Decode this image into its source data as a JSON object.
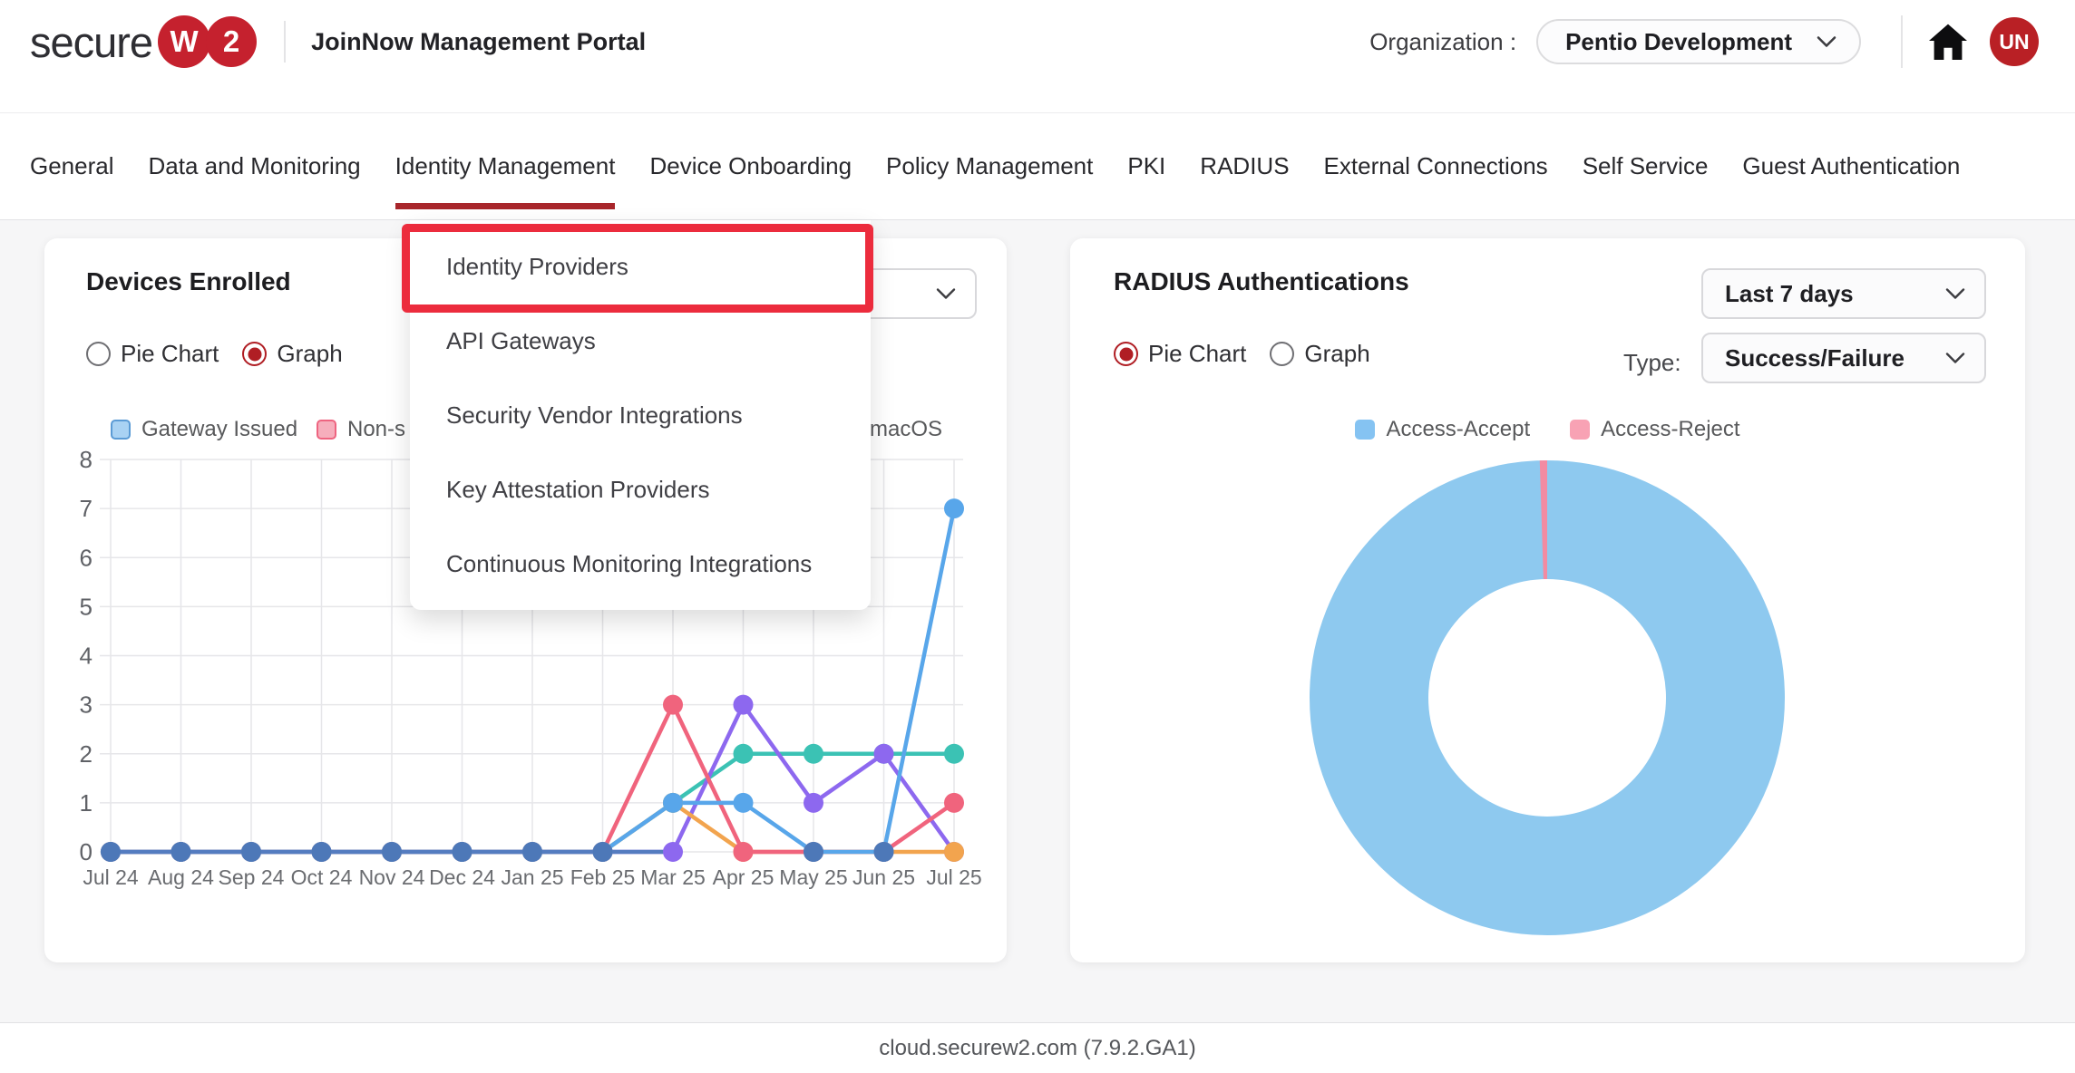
{
  "header": {
    "logo_text": "secure",
    "logo_badges": [
      "W",
      "2"
    ],
    "portal_title": "JoinNow Management Portal",
    "organization_label": "Organization :",
    "organization_value": "Pentio Development",
    "avatar_initials": "UN",
    "brand_red": "#c5212e"
  },
  "nav": {
    "items": [
      "General",
      "Data and Monitoring",
      "Identity Management",
      "Device Onboarding",
      "Policy Management",
      "PKI",
      "RADIUS",
      "External Connections",
      "Self Service",
      "Guest Authentication"
    ],
    "active_item": "Identity Management",
    "active_underline_color": "#a8262b"
  },
  "identity_menu": {
    "items": [
      "Identity Providers",
      "API Gateways",
      "Security Vendor Integrations",
      "Key Attestation Providers",
      "Continuous Monitoring Integrations"
    ],
    "highlighted_item": "Identity Providers",
    "highlight_color": "#ec2c3d"
  },
  "devices_card": {
    "title": "Devices Enrolled",
    "view_options": [
      {
        "label": "Pie Chart",
        "selected": false
      },
      {
        "label": "Graph",
        "selected": true
      }
    ],
    "legend_visible": [
      {
        "label": "Gateway Issued",
        "swatch_fill": "#a9d2f3",
        "swatch_border": "#5b9bd5"
      },
      {
        "label": "Non-s",
        "swatch_fill": "#f6aebc",
        "swatch_border": "#ee6480"
      },
      {
        "label": "macOS",
        "swatch_fill": "#8fd8cd",
        "swatch_border": "#35b3a5"
      }
    ],
    "chart_data": {
      "type": "line",
      "x": [
        "Jul 24",
        "Aug 24",
        "Sep 24",
        "Oct 24",
        "Nov 24",
        "Dec 24",
        "Jan 25",
        "Feb 25",
        "Mar 25",
        "Apr 25",
        "May 25",
        "Jun 25",
        "Jul 25"
      ],
      "ylim": [
        0,
        8
      ],
      "yticks": [
        0,
        1,
        2,
        3,
        4,
        5,
        6,
        7,
        8
      ],
      "grid": true,
      "series": [
        {
          "name": "teal series (legend hidden)",
          "color": "#3bc2b4",
          "values": [
            0,
            0,
            0,
            0,
            0,
            0,
            0,
            0,
            1,
            2,
            2,
            2,
            2
          ]
        },
        {
          "name": "purple series (legend hidden)",
          "color": "#8d68ef",
          "values": [
            0,
            0,
            0,
            0,
            0,
            0,
            0,
            0,
            0,
            3,
            1,
            2,
            0
          ]
        },
        {
          "name": "orange series (legend hidden)",
          "color": "#f2a44e",
          "values": [
            0,
            0,
            0,
            0,
            0,
            0,
            0,
            0,
            1,
            0,
            0,
            0,
            0
          ]
        },
        {
          "name": "Non-s",
          "color": "#f0647d",
          "values": [
            0,
            0,
            0,
            0,
            0,
            0,
            0,
            0,
            3,
            0,
            0,
            0,
            1
          ]
        },
        {
          "name": "Gateway Issued",
          "color": "#58a6ea",
          "values": [
            0,
            0,
            0,
            0,
            0,
            0,
            0,
            0,
            1,
            1,
            0,
            0,
            7
          ]
        }
      ],
      "overlap_dot_color": "#4d78b8",
      "overlap_zero_idx": [
        0,
        1,
        2,
        3,
        4,
        5,
        6,
        7,
        10,
        11
      ]
    }
  },
  "radius_card": {
    "title": "RADIUS Authentications",
    "range_select_value": "Last 7 days",
    "type_label": "Type:",
    "type_select_value": "Success/Failure",
    "view_options": [
      {
        "label": "Pie Chart",
        "selected": true
      },
      {
        "label": "Graph",
        "selected": false
      }
    ],
    "chart_data": {
      "type": "pie",
      "subtype": "donut",
      "labels": [
        "Access-Accept",
        "Access-Reject"
      ],
      "values_pct": [
        99.5,
        0.5
      ],
      "colors": [
        "#8ec9ef",
        "#f28ba2"
      ],
      "legend": [
        {
          "label": "Access-Accept",
          "swatch": "#85c3f2"
        },
        {
          "label": "Access-Reject",
          "swatch": "#f8a2b4"
        }
      ]
    }
  },
  "footer": {
    "text": "cloud.securew2.com (7.9.2.GA1)"
  },
  "icons": {
    "home": "house-glyph",
    "chevron_down": "v-shape"
  }
}
